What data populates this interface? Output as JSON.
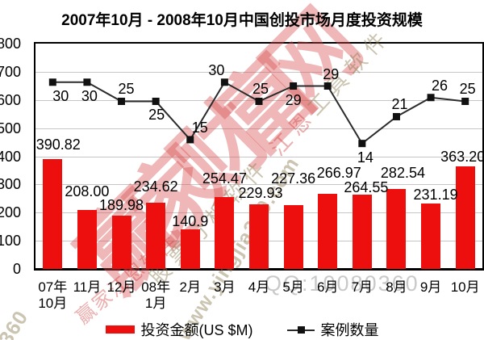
{
  "title": "2007年10月 - 2008年10月中国创投市场月度投资规模",
  "chart_data": {
    "type": "bar+line combo",
    "title": "2007年10月 - 2008年10月中国创投市场月度投资规模",
    "categories": [
      "07年10月",
      "11月",
      "12月",
      "08年1月",
      "2月",
      "3月",
      "4月",
      "5月",
      "6月",
      "7月",
      "8月",
      "9月",
      "10月"
    ],
    "category_display_lines": [
      [
        "07年",
        "10月"
      ],
      [
        "11月"
      ],
      [
        "12月"
      ],
      [
        "08年",
        "1月"
      ],
      [
        "2月"
      ],
      [
        "3月"
      ],
      [
        "4月"
      ],
      [
        "5月"
      ],
      [
        "6月"
      ],
      [
        "7月"
      ],
      [
        "8月"
      ],
      [
        "9月"
      ],
      [
        "10月"
      ]
    ],
    "series": [
      {
        "name": "投资金额(US $M)",
        "type": "bar",
        "color": "#ed0e0e",
        "values": [
          390.82,
          208.0,
          189.98,
          234.62,
          140.9,
          254.47,
          229.93,
          227.36,
          266.97,
          264.55,
          282.54,
          231.19,
          363.2
        ],
        "value_labels": [
          "390.82",
          "208.00",
          "189.98",
          "234.62",
          "140.9",
          "254.47",
          "229.93",
          "227.36",
          "266.97",
          "264.55",
          "282.54",
          "231.19",
          "363.20"
        ]
      },
      {
        "name": "案例数量",
        "type": "line",
        "color": "#2b2b2b",
        "marker_color": "#111111",
        "values": [
          30,
          30,
          25,
          25,
          15,
          30,
          25,
          29,
          29,
          14,
          21,
          26,
          25
        ]
      }
    ],
    "y_axis": {
      "min": 0,
      "max": 800,
      "step": 100,
      "tick_labels": [
        "800",
        "700",
        "600",
        "500",
        "400",
        "300",
        "200",
        "100",
        "0"
      ]
    },
    "grid": "horizontal",
    "legend_position": "bottom",
    "note": "line series plotted on unlabeled secondary scale"
  },
  "legend": {
    "investment_label": "投资金额(US $M)",
    "cases_label": "案例数量"
  },
  "watermarks": {
    "big_text": "赢家财富网",
    "diag_part_1": "股票分析软件 ",
    "diag_part_2": "江恩",
    "diag_part_3": "工具软件",
    "site_text": "www.yingjia360.com",
    "brand_text": "赢家江恩软件",
    "qq_text": "QQ:10080360",
    "corner_text": "360",
    "pink": "rgba(210,60,60,0.42)",
    "big_pink": "rgba(215,75,75,0.40)",
    "tan": "rgba(140,125,80,0.45)",
    "gray": "rgba(120,120,120,0.40)"
  }
}
